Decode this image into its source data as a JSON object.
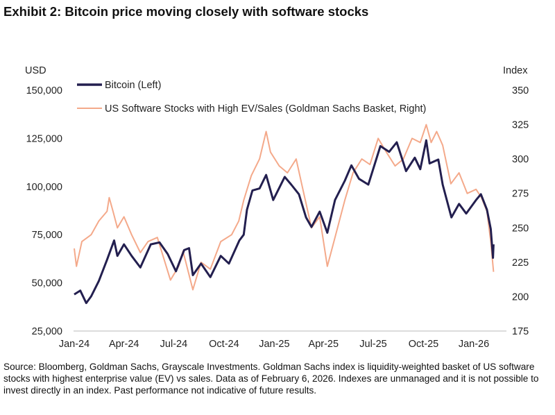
{
  "chart_data": {
    "type": "line",
    "title": "Exhibit 2: Bitcoin price moving closely with software stocks",
    "left_axis": {
      "label": "USD",
      "ticks": [
        "25,000",
        "50,000",
        "75,000",
        "100,000",
        "125,000",
        "150,000"
      ],
      "values": [
        25000,
        50000,
        75000,
        100000,
        125000,
        150000
      ],
      "range": [
        25000,
        150000
      ]
    },
    "right_axis": {
      "label": "Index",
      "ticks": [
        "175",
        "200",
        "225",
        "250",
        "275",
        "300",
        "325",
        "350"
      ],
      "values": [
        175,
        200,
        225,
        250,
        275,
        300,
        325,
        350
      ],
      "range": [
        175,
        350
      ]
    },
    "x_axis": {
      "ticks": [
        "Jan-24",
        "Apr-24",
        "Jul-24",
        "Oct-24",
        "Jan-25",
        "Apr-25",
        "Jul-25",
        "Oct-25",
        "Jan-26"
      ],
      "tick_dates": [
        "2024-01-01",
        "2024-04-01",
        "2024-07-01",
        "2024-10-01",
        "2025-01-01",
        "2025-04-01",
        "2025-07-01",
        "2025-10-01",
        "2026-01-01"
      ]
    },
    "grid": false,
    "legend_position": "top-left",
    "series": [
      {
        "name": "Bitcoin (Left)",
        "axis": "left",
        "color": "#231f4f",
        "points": [
          [
            "2024-01-01",
            44000
          ],
          [
            "2024-01-12",
            46000
          ],
          [
            "2024-01-23",
            39500
          ],
          [
            "2024-02-01",
            43000
          ],
          [
            "2024-02-15",
            51000
          ],
          [
            "2024-03-01",
            62000
          ],
          [
            "2024-03-14",
            72000
          ],
          [
            "2024-03-20",
            64000
          ],
          [
            "2024-04-01",
            70000
          ],
          [
            "2024-04-15",
            64000
          ],
          [
            "2024-05-01",
            58000
          ],
          [
            "2024-05-20",
            70000
          ],
          [
            "2024-06-05",
            71000
          ],
          [
            "2024-06-20",
            65000
          ],
          [
            "2024-07-05",
            56000
          ],
          [
            "2024-07-20",
            67000
          ],
          [
            "2024-07-29",
            68000
          ],
          [
            "2024-08-05",
            54000
          ],
          [
            "2024-08-20",
            60000
          ],
          [
            "2024-09-06",
            53000
          ],
          [
            "2024-09-25",
            64000
          ],
          [
            "2024-10-10",
            60000
          ],
          [
            "2024-10-29",
            72000
          ],
          [
            "2024-11-06",
            75000
          ],
          [
            "2024-11-12",
            88000
          ],
          [
            "2024-11-22",
            98000
          ],
          [
            "2024-12-05",
            99000
          ],
          [
            "2024-12-17",
            106000
          ],
          [
            "2024-12-30",
            93000
          ],
          [
            "2025-01-20",
            105000
          ],
          [
            "2025-02-01",
            101000
          ],
          [
            "2025-02-15",
            96000
          ],
          [
            "2025-02-28",
            84000
          ],
          [
            "2025-03-10",
            79000
          ],
          [
            "2025-03-25",
            87000
          ],
          [
            "2025-04-08",
            76000
          ],
          [
            "2025-04-22",
            93000
          ],
          [
            "2025-05-10",
            103000
          ],
          [
            "2025-05-22",
            111000
          ],
          [
            "2025-06-05",
            104000
          ],
          [
            "2025-06-22",
            101000
          ],
          [
            "2025-07-14",
            121000
          ],
          [
            "2025-07-30",
            118000
          ],
          [
            "2025-08-13",
            123000
          ],
          [
            "2025-08-30",
            108000
          ],
          [
            "2025-09-15",
            115000
          ],
          [
            "2025-09-25",
            109000
          ],
          [
            "2025-10-06",
            124000
          ],
          [
            "2025-10-12",
            112000
          ],
          [
            "2025-10-28",
            114000
          ],
          [
            "2025-11-05",
            101000
          ],
          [
            "2025-11-21",
            84000
          ],
          [
            "2025-12-05",
            91000
          ],
          [
            "2025-12-18",
            86000
          ],
          [
            "2026-01-05",
            93000
          ],
          [
            "2026-01-14",
            96000
          ],
          [
            "2026-01-25",
            88000
          ],
          [
            "2026-02-01",
            78000
          ],
          [
            "2026-02-05",
            63000
          ],
          [
            "2026-02-06",
            70000
          ]
        ]
      },
      {
        "name": "US Software Stocks with High EV/Sales (Goldman Sachs Basket, Right)",
        "axis": "right",
        "color": "#f4a98a",
        "points": [
          [
            "2024-01-01",
            235
          ],
          [
            "2024-01-05",
            222
          ],
          [
            "2024-01-15",
            240
          ],
          [
            "2024-02-01",
            245
          ],
          [
            "2024-02-15",
            255
          ],
          [
            "2024-03-01",
            262
          ],
          [
            "2024-03-05",
            272
          ],
          [
            "2024-03-12",
            262
          ],
          [
            "2024-03-20",
            250
          ],
          [
            "2024-04-01",
            258
          ],
          [
            "2024-04-15",
            245
          ],
          [
            "2024-05-01",
            232
          ],
          [
            "2024-05-15",
            240
          ],
          [
            "2024-06-01",
            243
          ],
          [
            "2024-06-15",
            225
          ],
          [
            "2024-06-25",
            212
          ],
          [
            "2024-07-10",
            222
          ],
          [
            "2024-07-18",
            233
          ],
          [
            "2024-08-05",
            205
          ],
          [
            "2024-08-20",
            225
          ],
          [
            "2024-09-06",
            220
          ],
          [
            "2024-09-25",
            240
          ],
          [
            "2024-10-15",
            245
          ],
          [
            "2024-10-28",
            255
          ],
          [
            "2024-11-06",
            270
          ],
          [
            "2024-11-20",
            288
          ],
          [
            "2024-12-05",
            300
          ],
          [
            "2024-12-17",
            320
          ],
          [
            "2024-12-25",
            305
          ],
          [
            "2025-01-10",
            295
          ],
          [
            "2025-01-25",
            290
          ],
          [
            "2025-02-10",
            300
          ],
          [
            "2025-02-20",
            282
          ],
          [
            "2025-03-10",
            250
          ],
          [
            "2025-03-25",
            258
          ],
          [
            "2025-04-08",
            222
          ],
          [
            "2025-04-20",
            240
          ],
          [
            "2025-05-10",
            270
          ],
          [
            "2025-05-25",
            290
          ],
          [
            "2025-06-10",
            300
          ],
          [
            "2025-06-25",
            296
          ],
          [
            "2025-07-10",
            315
          ],
          [
            "2025-07-25",
            305
          ],
          [
            "2025-08-10",
            295
          ],
          [
            "2025-08-25",
            300
          ],
          [
            "2025-09-10",
            315
          ],
          [
            "2025-09-25",
            312
          ],
          [
            "2025-10-06",
            325
          ],
          [
            "2025-10-15",
            312
          ],
          [
            "2025-10-25",
            320
          ],
          [
            "2025-11-05",
            310
          ],
          [
            "2025-11-20",
            282
          ],
          [
            "2025-12-05",
            290
          ],
          [
            "2025-12-20",
            275
          ],
          [
            "2026-01-05",
            278
          ],
          [
            "2026-01-15",
            272
          ],
          [
            "2026-01-25",
            262
          ],
          [
            "2026-02-01",
            240
          ],
          [
            "2026-02-06",
            218
          ]
        ]
      }
    ]
  },
  "footnote": "Source: Bloomberg, Goldman Sachs, Grayscale Investments. Goldman Sachs index is liquidity-weighted basket of US software stocks with highest enterprise value (EV) vs sales. Data as of February 6, 2026. Indexes are unmanaged and it is not possible to invest directly in an index. Past performance not indicative of future results."
}
